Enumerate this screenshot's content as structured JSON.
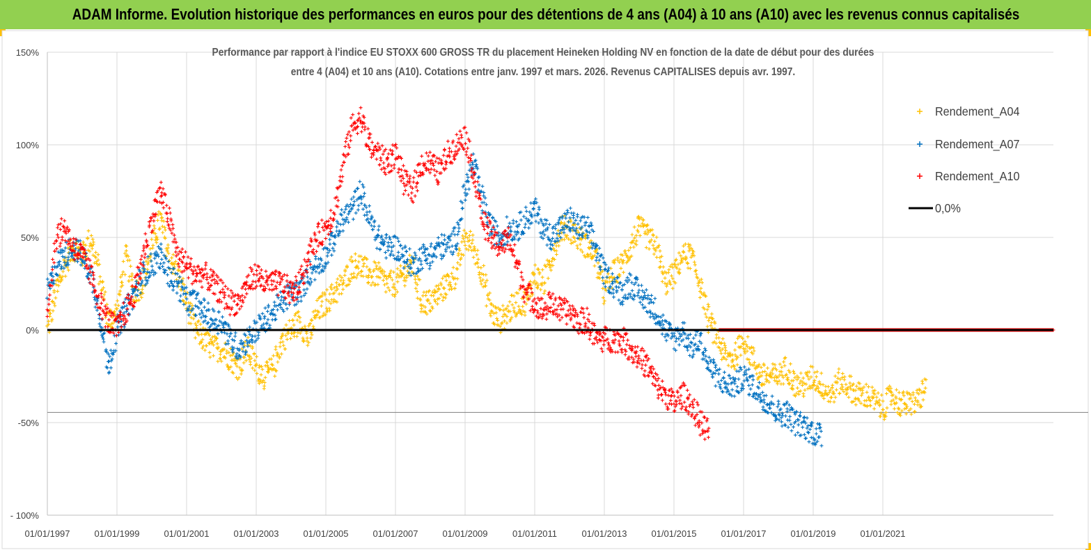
{
  "header": {
    "title": "ADAM Informe. Evolution historique des performances en euros pour des détentions de 4 ans (A04) à 10 ans (A10) avec les revenus connus capitalisés"
  },
  "colors": {
    "banner": "#92d050",
    "a04": "#ffc000",
    "a07": "#0070c0",
    "a10": "#ff0000",
    "zero": "#000000"
  },
  "chart_data": {
    "type": "scatter",
    "title": "Performance par rapport à l'indice EU STOXX 600 GROSS TR  du placement Heineken Holding NV en fonction de la date de début pour des durées",
    "subtitle": "entre 4 (A04) et 10 ans (A10). Cotations entre janv. 1997 et mars. 2026. Revenus CAPITALISES depuis avr. 1997.",
    "xlabel": "",
    "ylabel": "",
    "x_range": [
      1997.0,
      2025.9
    ],
    "ylim": [
      -100,
      150
    ],
    "x_ticks": [
      1997,
      1999,
      2001,
      2003,
      2005,
      2007,
      2009,
      2011,
      2013,
      2015,
      2017,
      2019,
      2021
    ],
    "x_tick_labels": [
      "01/01/1997",
      "01/01/1999",
      "01/01/2001",
      "01/01/2003",
      "01/01/2005",
      "01/01/2007",
      "01/01/2009",
      "01/01/2011",
      "01/01/2013",
      "01/01/2015",
      "01/01/2017",
      "01/01/2019",
      "01/01/2021"
    ],
    "y_ticks": [
      -100,
      -50,
      0,
      50,
      100,
      150
    ],
    "y_tick_labels": [
      "- 100%",
      "-50%",
      "0%",
      "50%",
      "100%",
      "150%"
    ],
    "legend_position": "right",
    "series": [
      {
        "name": "Rendement_A04",
        "color": "#ffc000",
        "x": [
          1997.0,
          1997.25,
          1997.5,
          1997.75,
          1998.0,
          1998.25,
          1998.5,
          1998.75,
          1999.0,
          1999.25,
          1999.5,
          1999.75,
          2000.0,
          2000.25,
          2000.5,
          2000.75,
          2001.0,
          2001.25,
          2001.5,
          2001.75,
          2002.0,
          2002.25,
          2002.5,
          2002.75,
          2003.0,
          2003.25,
          2003.5,
          2003.75,
          2004.0,
          2004.25,
          2004.5,
          2004.75,
          2005.0,
          2005.25,
          2005.5,
          2005.75,
          2006.0,
          2006.25,
          2006.5,
          2006.75,
          2007.0,
          2007.25,
          2007.5,
          2007.75,
          2008.0,
          2008.25,
          2008.5,
          2008.75,
          2009.0,
          2009.25,
          2009.5,
          2009.75,
          2010.0,
          2010.25,
          2010.5,
          2010.75,
          2011.0,
          2011.25,
          2011.5,
          2011.75,
          2012.0,
          2012.25,
          2012.5,
          2012.75,
          2013.0,
          2013.25,
          2013.5,
          2013.75,
          2014.0,
          2014.25,
          2014.5,
          2014.75,
          2015.0,
          2015.25,
          2015.5,
          2015.75,
          2016.0,
          2016.25,
          2016.5,
          2016.75,
          2017.0,
          2017.25,
          2017.5,
          2017.75,
          2018.0,
          2018.25,
          2018.5,
          2018.75,
          2019.0,
          2019.25,
          2019.5,
          2019.75,
          2020.0,
          2020.25,
          2020.5,
          2020.75,
          2021.0,
          2021.25,
          2021.5,
          2021.75,
          2022.0,
          2022.25
        ],
        "values": [
          0,
          20,
          35,
          45,
          40,
          50,
          30,
          5,
          10,
          40,
          20,
          25,
          45,
          60,
          40,
          30,
          15,
          0,
          -5,
          -10,
          -10,
          -15,
          -20,
          -10,
          -20,
          -25,
          -20,
          -5,
          0,
          5,
          -5,
          10,
          15,
          20,
          25,
          35,
          35,
          30,
          30,
          25,
          25,
          30,
          35,
          15,
          15,
          20,
          25,
          30,
          50,
          45,
          30,
          10,
          5,
          10,
          15,
          15,
          30,
          25,
          40,
          55,
          55,
          50,
          45,
          40,
          20,
          30,
          35,
          45,
          55,
          50,
          45,
          25,
          30,
          40,
          40,
          25,
          5,
          -5,
          -15,
          -15,
          -5,
          -15,
          -25,
          -25,
          -25,
          -20,
          -30,
          -30,
          -25,
          -30,
          -35,
          -28,
          -30,
          -35,
          -35,
          -38,
          -43,
          -35,
          -40,
          -40,
          -38,
          -32
        ]
      },
      {
        "name": "Rendement_A07",
        "color": "#0070c0",
        "x": [
          1997.0,
          1997.25,
          1997.5,
          1997.75,
          1998.0,
          1998.25,
          1998.5,
          1998.75,
          1999.0,
          1999.25,
          1999.5,
          1999.75,
          2000.0,
          2000.25,
          2000.5,
          2000.75,
          2001.0,
          2001.25,
          2001.5,
          2001.75,
          2002.0,
          2002.25,
          2002.5,
          2002.75,
          2003.0,
          2003.25,
          2003.5,
          2003.75,
          2004.0,
          2004.25,
          2004.5,
          2004.75,
          2005.0,
          2005.25,
          2005.5,
          2005.75,
          2006.0,
          2006.25,
          2006.5,
          2006.75,
          2007.0,
          2007.25,
          2007.5,
          2007.75,
          2008.0,
          2008.25,
          2008.5,
          2008.75,
          2009.0,
          2009.25,
          2009.5,
          2009.75,
          2010.0,
          2010.25,
          2010.5,
          2010.75,
          2011.0,
          2011.25,
          2011.5,
          2011.75,
          2012.0,
          2012.25,
          2012.5,
          2012.75,
          2013.0,
          2013.25,
          2013.5,
          2013.75,
          2014.0,
          2014.25,
          2014.5,
          2014.75,
          2015.0,
          2015.25,
          2015.5,
          2015.75,
          2016.0,
          2016.25,
          2016.5,
          2016.75,
          2017.0,
          2017.25,
          2017.5,
          2017.75,
          2018.0,
          2018.25,
          2018.5,
          2018.75,
          2019.0,
          2019.25
        ],
        "values": [
          20,
          35,
          40,
          45,
          40,
          30,
          10,
          -20,
          0,
          10,
          20,
          30,
          35,
          40,
          30,
          25,
          15,
          15,
          10,
          5,
          5,
          -5,
          -10,
          -5,
          0,
          5,
          10,
          15,
          20,
          20,
          30,
          35,
          40,
          50,
          60,
          65,
          75,
          60,
          50,
          45,
          45,
          40,
          35,
          40,
          40,
          45,
          45,
          50,
          75,
          90,
          70,
          55,
          50,
          55,
          55,
          60,
          65,
          55,
          50,
          55,
          60,
          55,
          55,
          45,
          30,
          25,
          20,
          25,
          20,
          15,
          10,
          0,
          -5,
          0,
          -10,
          -5,
          -20,
          -25,
          -30,
          -30,
          -25,
          -30,
          -35,
          -40,
          -45,
          -45,
          -50,
          -52,
          -55,
          -58
        ]
      },
      {
        "name": "Rendement_A10",
        "color": "#ff0000",
        "x": [
          1997.0,
          1997.25,
          1997.5,
          1997.75,
          1998.0,
          1998.25,
          1998.5,
          1998.75,
          1999.0,
          1999.25,
          1999.5,
          1999.75,
          2000.0,
          2000.25,
          2000.5,
          2000.75,
          2001.0,
          2001.25,
          2001.5,
          2001.75,
          2002.0,
          2002.25,
          2002.5,
          2002.75,
          2003.0,
          2003.25,
          2003.5,
          2003.75,
          2004.0,
          2004.25,
          2004.5,
          2004.75,
          2005.0,
          2005.25,
          2005.5,
          2005.75,
          2006.0,
          2006.25,
          2006.5,
          2006.75,
          2007.0,
          2007.25,
          2007.5,
          2007.75,
          2008.0,
          2008.25,
          2008.5,
          2008.75,
          2009.0,
          2009.25,
          2009.5,
          2009.75,
          2010.0,
          2010.25,
          2010.5,
          2010.75,
          2011.0,
          2011.25,
          2011.5,
          2011.75,
          2012.0,
          2012.25,
          2012.5,
          2012.75,
          2013.0,
          2013.25,
          2013.5,
          2013.75,
          2014.0,
          2014.25,
          2014.5,
          2014.75,
          2015.0,
          2015.25,
          2015.5,
          2015.75,
          2016.0
        ],
        "values": [
          10,
          50,
          55,
          45,
          40,
          30,
          15,
          5,
          0,
          10,
          20,
          40,
          60,
          75,
          60,
          40,
          35,
          30,
          30,
          25,
          20,
          15,
          15,
          25,
          30,
          25,
          25,
          25,
          20,
          25,
          40,
          50,
          55,
          65,
          90,
          110,
          115,
          100,
          95,
          90,
          95,
          80,
          75,
          90,
          90,
          85,
          95,
          100,
          105,
          85,
          60,
          50,
          45,
          50,
          35,
          20,
          15,
          10,
          15,
          10,
          10,
          5,
          5,
          -5,
          -5,
          -5,
          -5,
          -10,
          -15,
          -20,
          -30,
          -35,
          -40,
          -35,
          -40,
          -50,
          -55
        ]
      },
      {
        "name": "Rendement_A10",
        "color": "#ff0000",
        "x": [
          2016.3,
          2025.9
        ],
        "values": [
          0,
          0
        ],
        "flat": true
      },
      {
        "name": "0,0%",
        "color": "#000000",
        "type": "line",
        "x": [
          1997.0,
          2025.9
        ],
        "values": [
          0,
          0
        ]
      }
    ],
    "legend": [
      {
        "label": "Rendement_A04",
        "marker": "plus",
        "color": "#ffc000"
      },
      {
        "label": "Rendement_A07",
        "marker": "plus",
        "color": "#0070c0"
      },
      {
        "label": "Rendement_A10",
        "marker": "plus",
        "color": "#ff0000"
      },
      {
        "label": "0,0%",
        "marker": "line",
        "color": "#000000"
      }
    ],
    "reference_lines": [
      {
        "y": -44.5,
        "color": "#7f7f7f"
      }
    ]
  }
}
